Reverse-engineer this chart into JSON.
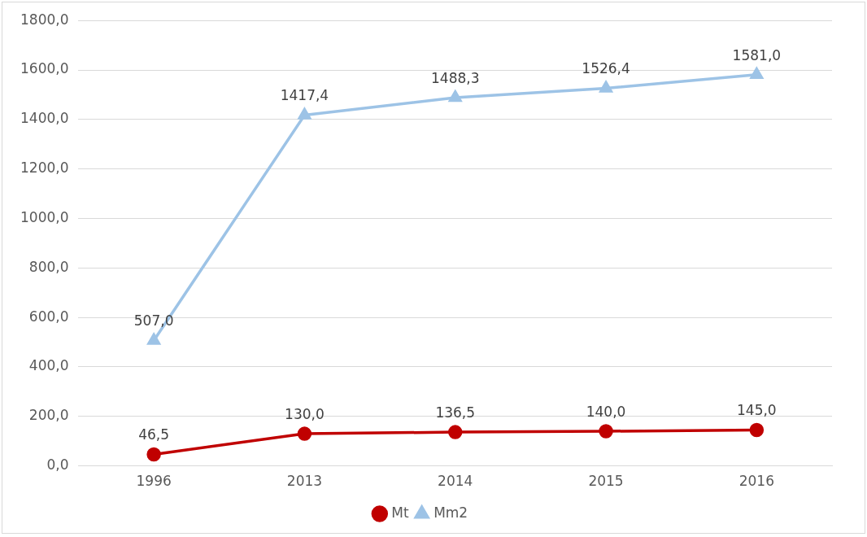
{
  "chart_data": {
    "type": "line",
    "categories": [
      "1996",
      "2013",
      "2014",
      "2015",
      "2016"
    ],
    "series": [
      {
        "name": "Mt",
        "color": "#c00000",
        "marker": "circle",
        "values": [
          46.5,
          130.0,
          136.5,
          140.0,
          145.0
        ],
        "value_labels": [
          "46,5",
          "130,0",
          "136,5",
          "140,0",
          "145,0"
        ]
      },
      {
        "name": "Mm2",
        "color": "#9dc3e6",
        "marker": "triangle",
        "values": [
          507.0,
          1417.4,
          1488.3,
          1526.4,
          1581.0
        ],
        "value_labels": [
          "507,0",
          "1417,4",
          "1488,3",
          "1526,4",
          "1581,0"
        ]
      }
    ],
    "ylim": [
      0,
      1800
    ],
    "yticks": [
      {
        "value": 0,
        "label": "0,0"
      },
      {
        "value": 200,
        "label": "200,0"
      },
      {
        "value": 400,
        "label": "400,0"
      },
      {
        "value": 600,
        "label": "600,0"
      },
      {
        "value": 800,
        "label": "800,0"
      },
      {
        "value": 1000,
        "label": "1000,0"
      },
      {
        "value": 1200,
        "label": "1200,0"
      },
      {
        "value": 1400,
        "label": "1400,0"
      },
      {
        "value": 1600,
        "label": "1600,0"
      },
      {
        "value": 1800,
        "label": "1800,0"
      }
    ],
    "grid": "y",
    "legend": "bottom",
    "line_style": "solid"
  }
}
